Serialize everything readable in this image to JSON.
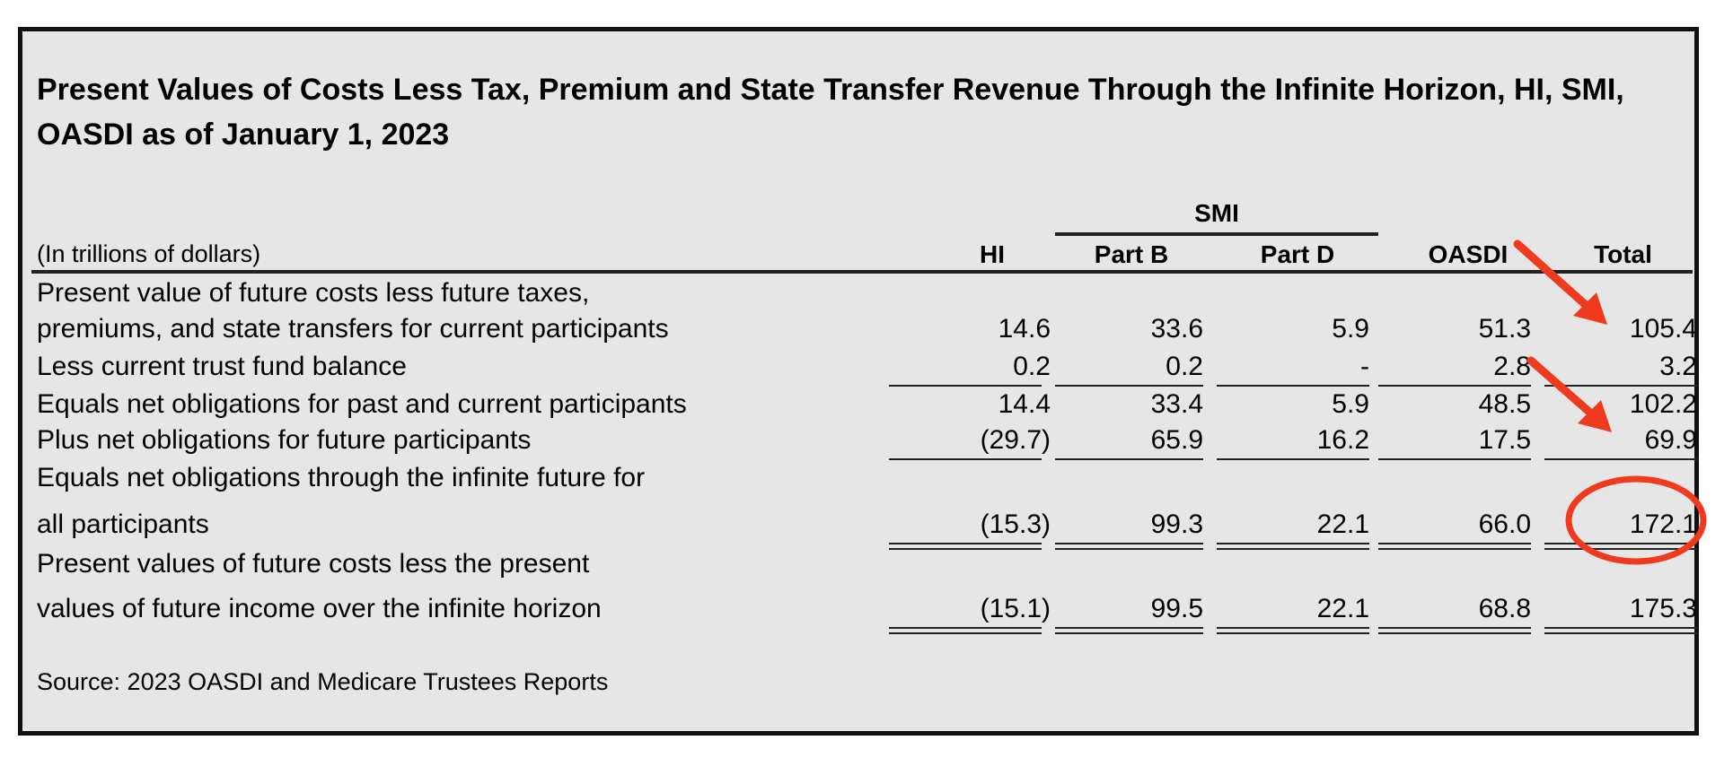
{
  "title": "Present Values of Costs Less Tax, Premium and State Transfer Revenue Through the Infinite Horizon, HI, SMI, OASDI as of January 1, 2023",
  "units_note": "(In trillions of dollars)",
  "group_header": "SMI",
  "columns": [
    "HI",
    "Part B",
    "Part D",
    "OASDI",
    "Total"
  ],
  "rows": [
    {
      "label_lines": [
        "Present value of future costs less future taxes,",
        "premiums, and state transfers for current participants"
      ],
      "values": [
        "14.6",
        "33.6",
        "5.9",
        "51.3",
        "105.4"
      ]
    },
    {
      "label_lines": [
        "Less current trust fund balance"
      ],
      "values": [
        "0.2",
        "0.2",
        "-",
        "2.8",
        "3.2"
      ]
    },
    {
      "label_lines": [
        "Equals net obligations for past and current participants"
      ],
      "values": [
        "14.4",
        "33.4",
        "5.9",
        "48.5",
        "102.2"
      ]
    },
    {
      "label_lines": [
        "Plus net obligations for future participants"
      ],
      "values": [
        "(29.7)",
        "65.9",
        "16.2",
        "17.5",
        "69.9"
      ]
    },
    {
      "label_lines": [
        "Equals net obligations through the infinite future for",
        "all participants"
      ],
      "values": [
        "(15.3)",
        "99.3",
        "22.1",
        "66.0",
        "172.1"
      ]
    },
    {
      "label_lines": [
        "Present values of future costs less the present",
        "values of future income over the infinite horizon"
      ],
      "values": [
        "(15.1)",
        "99.5",
        "22.1",
        "68.8",
        "175.3"
      ]
    }
  ],
  "source": "Source: 2023 OASDI and Medicare Trustees Reports",
  "annotation_color": "#f03a1e"
}
